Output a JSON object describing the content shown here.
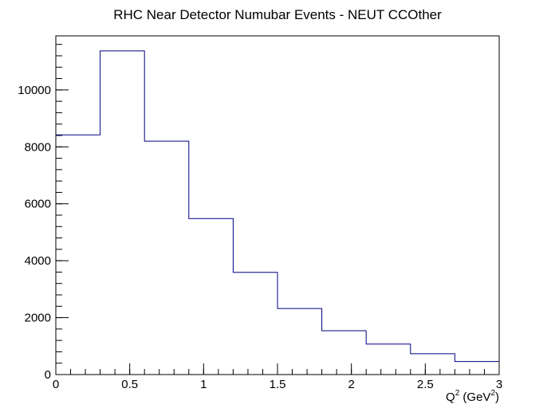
{
  "chart_data": {
    "type": "histogram",
    "title": "RHC Near Detector Numubar Events - NEUT CCOther",
    "xlabel_base": "Q",
    "xlabel_sup1": "2",
    "xlabel_unit": " (GeV",
    "xlabel_sup2": "2",
    "xlabel_close": ")",
    "ylabel": "",
    "bin_edges": [
      0,
      0.3,
      0.6,
      0.9,
      1.2,
      1.5,
      1.8,
      2.1,
      2.4,
      2.7,
      3.0
    ],
    "values": [
      8420,
      11370,
      8200,
      5480,
      3590,
      2320,
      1540,
      1070,
      730,
      460
    ],
    "xlim": [
      0,
      3
    ],
    "ylim": [
      0,
      11900
    ],
    "x_ticks": [
      {
        "value": 0,
        "label": "0"
      },
      {
        "value": 0.5,
        "label": "0.5"
      },
      {
        "value": 1,
        "label": "1"
      },
      {
        "value": 1.5,
        "label": "1.5"
      },
      {
        "value": 2,
        "label": "2"
      },
      {
        "value": 2.5,
        "label": "2.5"
      },
      {
        "value": 3,
        "label": "3"
      }
    ],
    "y_ticks": [
      {
        "value": 0,
        "label": "0"
      },
      {
        "value": 2000,
        "label": "2000"
      },
      {
        "value": 4000,
        "label": "4000"
      },
      {
        "value": 6000,
        "label": "6000"
      },
      {
        "value": 8000,
        "label": "8000"
      },
      {
        "value": 10000,
        "label": "10000"
      }
    ],
    "x_minor_step": 0.1,
    "y_minor_step": 400,
    "grid": false,
    "line_color": "#000080",
    "axis_color": "#000000"
  }
}
